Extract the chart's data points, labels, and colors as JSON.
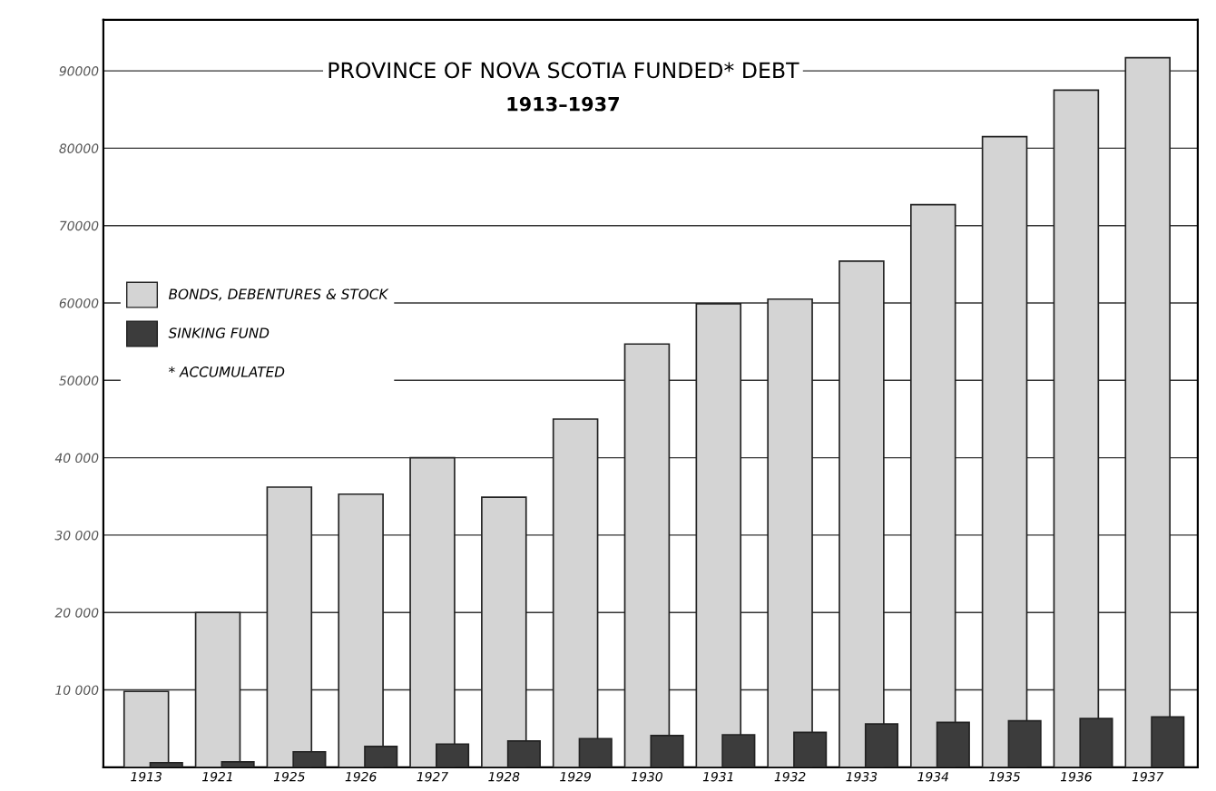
{
  "chart_data": {
    "type": "bar",
    "title": "PROVINCE OF NOVA SCOTIA FUNDED* DEBT",
    "subtitle": "1913–1937",
    "categories": [
      "1913",
      "1921",
      "1925",
      "1926",
      "1927",
      "1928",
      "1929",
      "1930",
      "1931",
      "1932",
      "1933",
      "1934",
      "1935",
      "1936",
      "1937"
    ],
    "series": [
      {
        "name": "BONDS, DEBENTURES & STOCK",
        "color": "#d4d4d4",
        "values": [
          9800,
          20000,
          36200,
          35300,
          40000,
          34900,
          45000,
          54700,
          59900,
          60500,
          65400,
          72700,
          81500,
          87500,
          91700
        ]
      },
      {
        "name": "SINKING FUND",
        "color": "#3c3c3c",
        "values": [
          600,
          700,
          2000,
          2700,
          3000,
          3400,
          3700,
          4100,
          4200,
          4500,
          5600,
          5800,
          6000,
          6300,
          6500
        ]
      }
    ],
    "annotations": [
      "* ACCUMULATED"
    ],
    "ylim": [
      0,
      96600
    ],
    "yticks": [
      {
        "value": 10000,
        "label": "10 000"
      },
      {
        "value": 20000,
        "label": "20 000"
      },
      {
        "value": 30000,
        "label": "30 000"
      },
      {
        "value": 40000,
        "label": "40 000"
      },
      50000,
      60000,
      70000,
      80000,
      90000
    ],
    "grid": "y",
    "legend": "left"
  }
}
